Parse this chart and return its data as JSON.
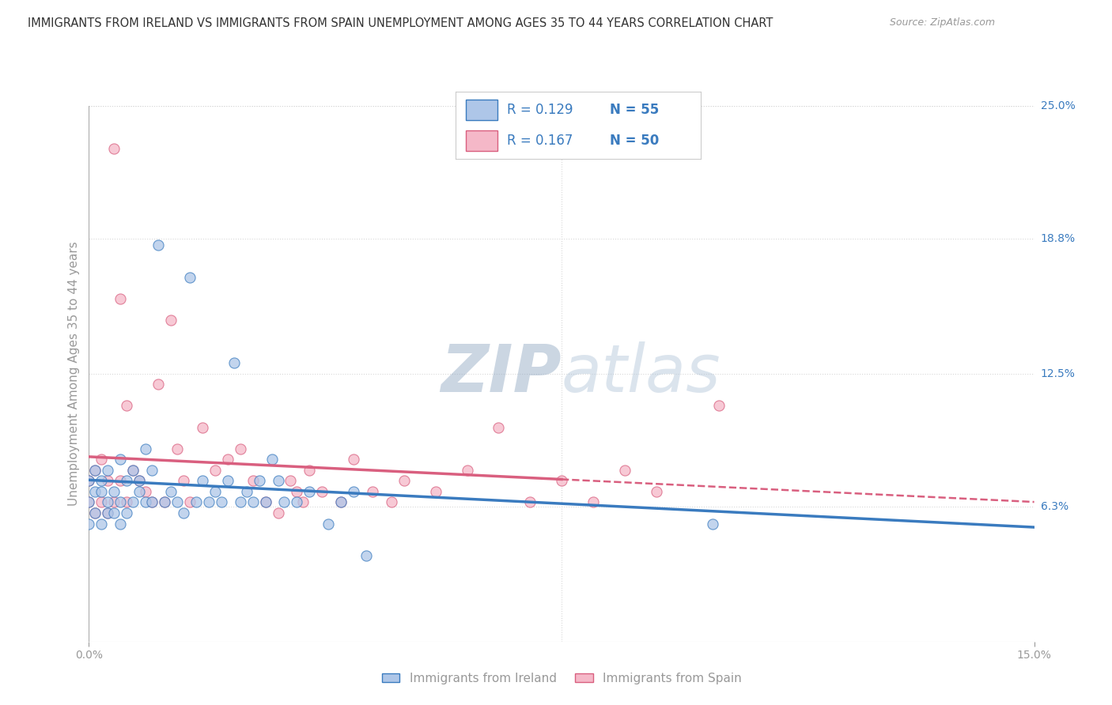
{
  "title": "IMMIGRANTS FROM IRELAND VS IMMIGRANTS FROM SPAIN UNEMPLOYMENT AMONG AGES 35 TO 44 YEARS CORRELATION CHART",
  "source": "Source: ZipAtlas.com",
  "ylabel": "Unemployment Among Ages 35 to 44 years",
  "xmin": 0.0,
  "xmax": 0.15,
  "ymin": 0.0,
  "ymax": 0.25,
  "x_tick_labels": [
    "0.0%",
    "15.0%"
  ],
  "y_tick_labels": [
    "6.3%",
    "12.5%",
    "18.8%",
    "25.0%"
  ],
  "y_tick_values": [
    0.063,
    0.125,
    0.188,
    0.25
  ],
  "legend_bottom_labels": [
    "Immigrants from Ireland",
    "Immigrants from Spain"
  ],
  "ireland_R": 0.129,
  "ireland_N": 55,
  "spain_R": 0.167,
  "spain_N": 50,
  "ireland_color": "#aec6e8",
  "spain_color": "#f5b8c8",
  "ireland_line_color": "#3a7bbf",
  "spain_line_color": "#d95f7f",
  "background_color": "#ffffff",
  "watermark_color": "#ccd8e8",
  "grid_color": "#d8d8d8",
  "title_color": "#333333",
  "legend_text_color": "#3a7bbf",
  "axis_label_color": "#999999",
  "ireland_scatter_x": [
    0.0,
    0.0,
    0.0,
    0.001,
    0.001,
    0.001,
    0.002,
    0.002,
    0.002,
    0.003,
    0.003,
    0.003,
    0.004,
    0.004,
    0.005,
    0.005,
    0.005,
    0.006,
    0.006,
    0.007,
    0.007,
    0.008,
    0.008,
    0.009,
    0.009,
    0.01,
    0.01,
    0.011,
    0.012,
    0.013,
    0.014,
    0.015,
    0.016,
    0.017,
    0.018,
    0.019,
    0.02,
    0.021,
    0.022,
    0.023,
    0.024,
    0.025,
    0.026,
    0.027,
    0.028,
    0.029,
    0.03,
    0.031,
    0.033,
    0.035,
    0.038,
    0.04,
    0.042,
    0.044,
    0.099
  ],
  "ireland_scatter_y": [
    0.055,
    0.065,
    0.075,
    0.06,
    0.07,
    0.08,
    0.055,
    0.07,
    0.075,
    0.06,
    0.065,
    0.08,
    0.06,
    0.07,
    0.055,
    0.065,
    0.085,
    0.06,
    0.075,
    0.065,
    0.08,
    0.07,
    0.075,
    0.065,
    0.09,
    0.065,
    0.08,
    0.185,
    0.065,
    0.07,
    0.065,
    0.06,
    0.17,
    0.065,
    0.075,
    0.065,
    0.07,
    0.065,
    0.075,
    0.13,
    0.065,
    0.07,
    0.065,
    0.075,
    0.065,
    0.085,
    0.075,
    0.065,
    0.065,
    0.07,
    0.055,
    0.065,
    0.07,
    0.04,
    0.055
  ],
  "spain_scatter_x": [
    0.0,
    0.0,
    0.001,
    0.001,
    0.002,
    0.002,
    0.003,
    0.003,
    0.004,
    0.004,
    0.005,
    0.005,
    0.006,
    0.006,
    0.007,
    0.008,
    0.009,
    0.01,
    0.011,
    0.012,
    0.013,
    0.014,
    0.015,
    0.016,
    0.018,
    0.02,
    0.022,
    0.024,
    0.026,
    0.028,
    0.03,
    0.032,
    0.033,
    0.034,
    0.035,
    0.037,
    0.04,
    0.042,
    0.045,
    0.048,
    0.05,
    0.055,
    0.06,
    0.065,
    0.07,
    0.075,
    0.08,
    0.085,
    0.09,
    0.1
  ],
  "spain_scatter_y": [
    0.065,
    0.075,
    0.06,
    0.08,
    0.065,
    0.085,
    0.06,
    0.075,
    0.23,
    0.065,
    0.075,
    0.16,
    0.065,
    0.11,
    0.08,
    0.075,
    0.07,
    0.065,
    0.12,
    0.065,
    0.15,
    0.09,
    0.075,
    0.065,
    0.1,
    0.08,
    0.085,
    0.09,
    0.075,
    0.065,
    0.06,
    0.075,
    0.07,
    0.065,
    0.08,
    0.07,
    0.065,
    0.085,
    0.07,
    0.065,
    0.075,
    0.07,
    0.08,
    0.1,
    0.065,
    0.075,
    0.065,
    0.08,
    0.07,
    0.11
  ]
}
